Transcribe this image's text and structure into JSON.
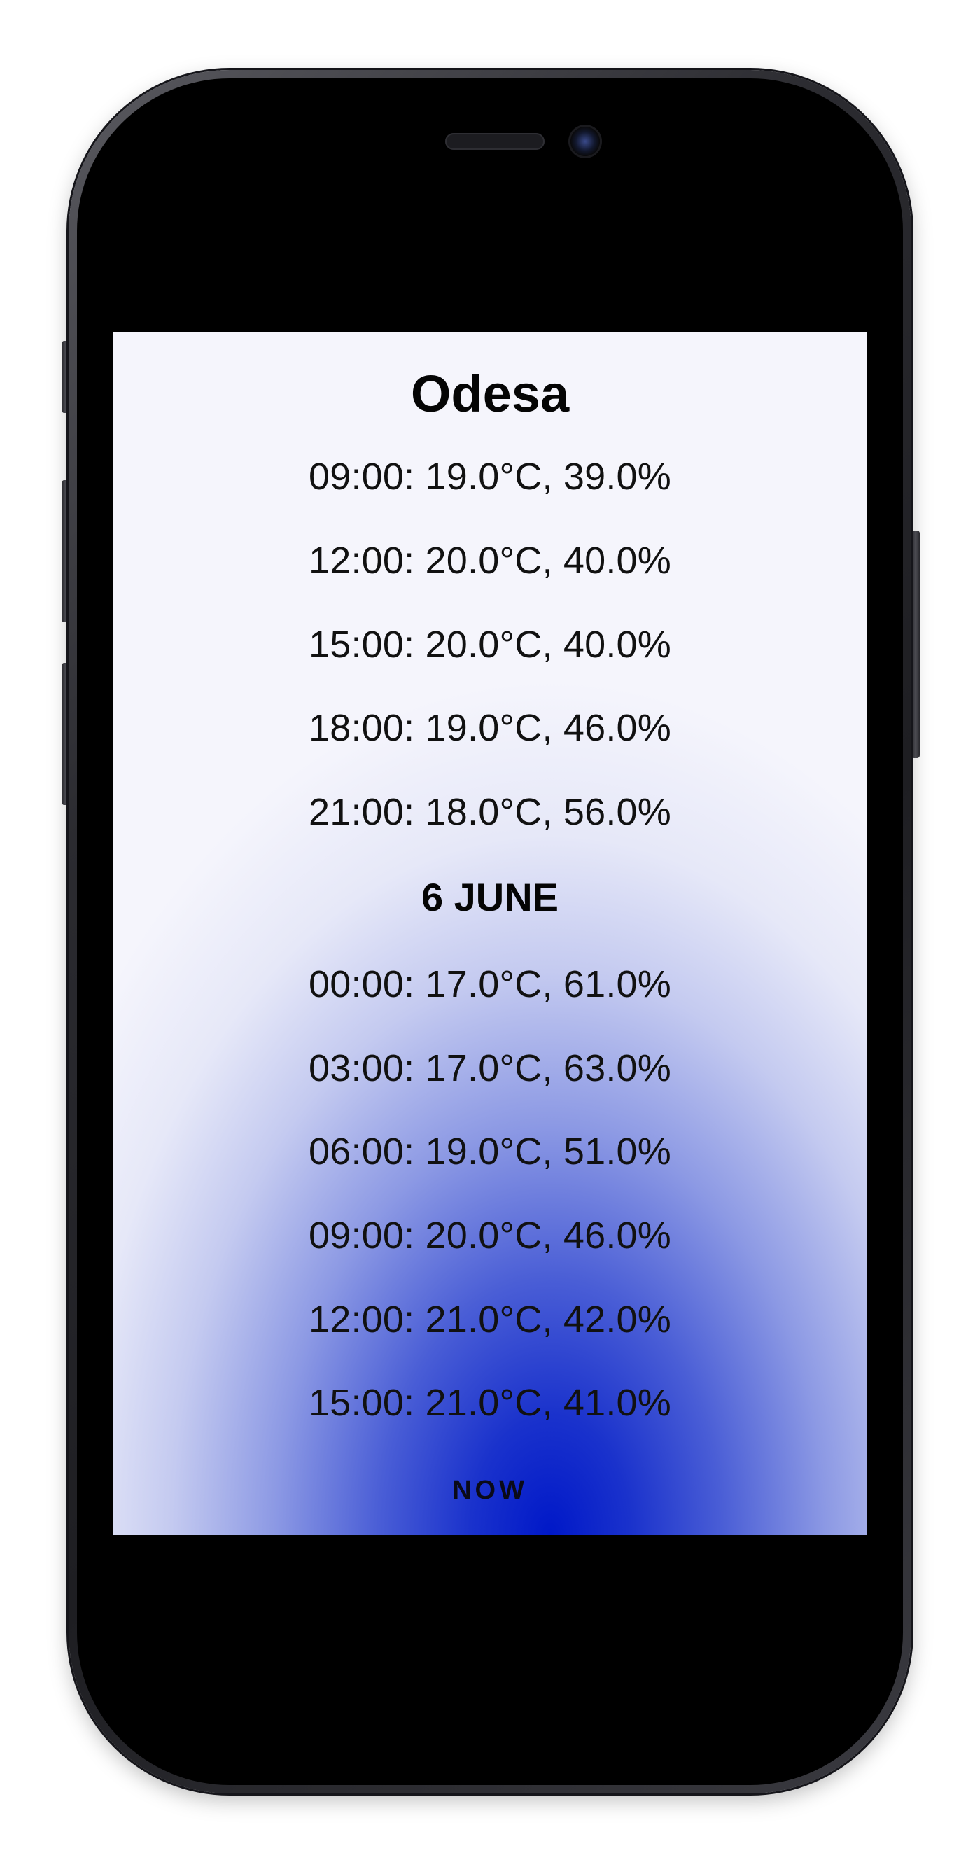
{
  "app": {
    "city": "Odesa",
    "now_label": "NOW"
  },
  "forecast": {
    "day1_rows": [
      "09:00: 19.0°C, 39.0%",
      "12:00: 20.0°C, 40.0%",
      "15:00: 20.0°C, 40.0%",
      "18:00: 19.0°C, 46.0%",
      "21:00: 18.0°C, 56.0%"
    ],
    "day2_heading": "6 JUNE",
    "day2_rows": [
      "00:00: 17.0°C, 61.0%",
      "03:00: 17.0°C, 63.0%",
      "06:00: 19.0°C, 51.0%",
      "09:00: 20.0°C, 46.0%",
      "12:00: 21.0°C, 42.0%",
      "15:00: 21.0°C, 41.0%"
    ]
  },
  "colors": {
    "gradient_core": "#0018c8",
    "gradient_edge": "#f5f5fc",
    "text": "#111111"
  }
}
